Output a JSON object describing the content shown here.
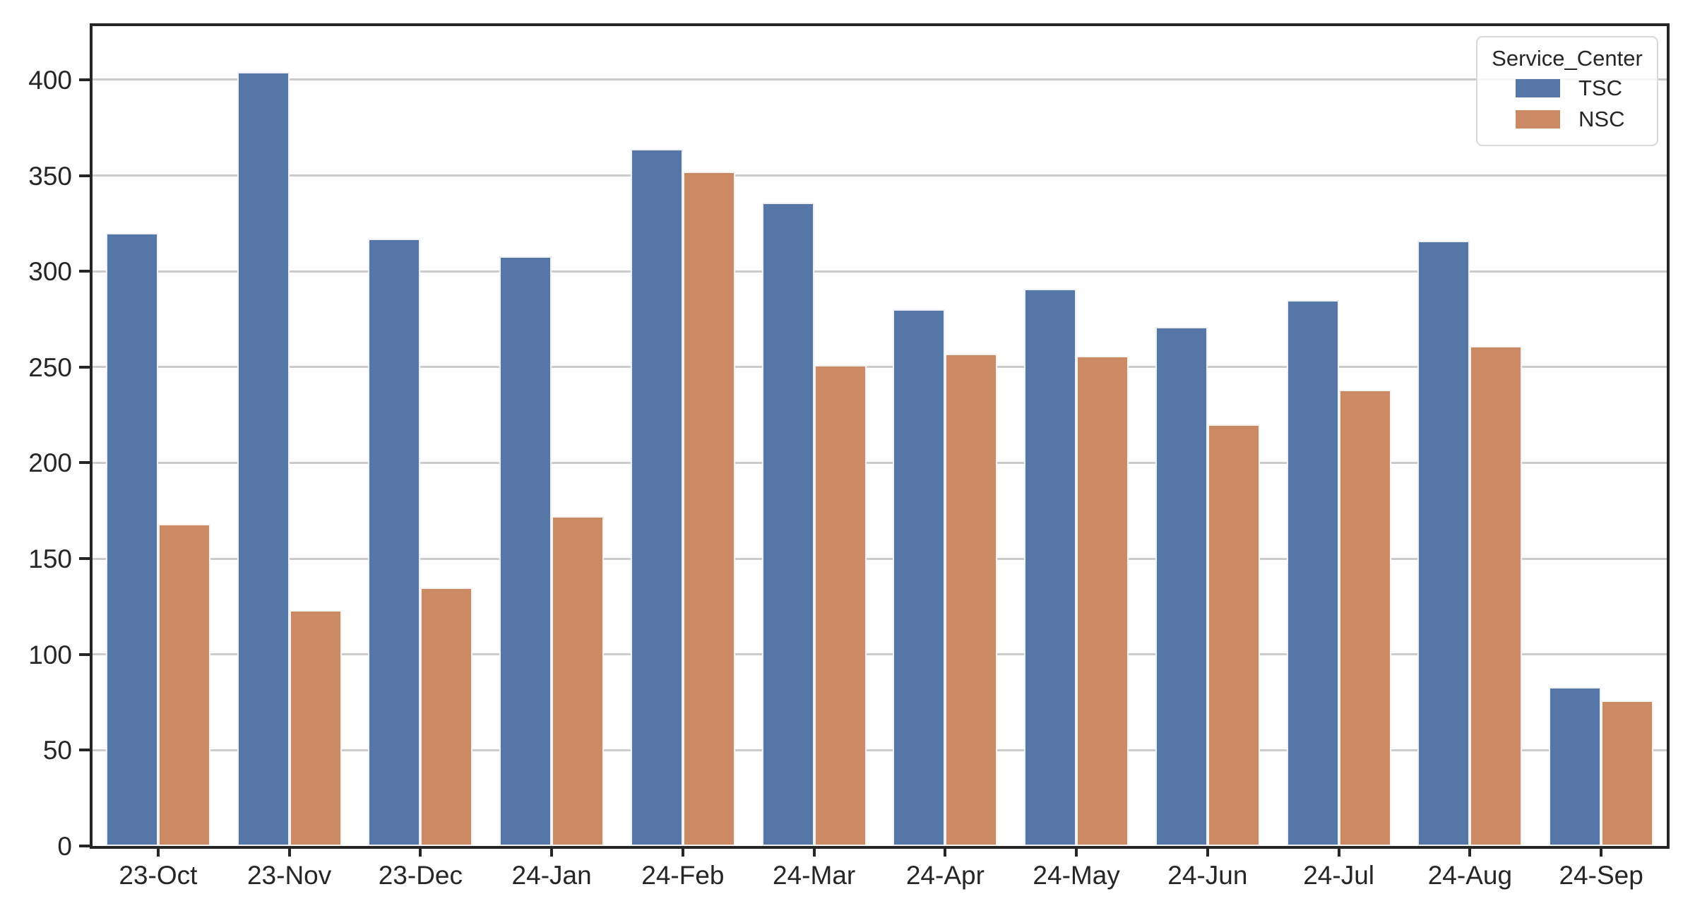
{
  "chart_data": {
    "type": "bar",
    "title": "",
    "xlabel": "",
    "ylabel": "",
    "categories": [
      "23-Oct",
      "23-Nov",
      "23-Dec",
      "24-Jan",
      "24-Feb",
      "24-Mar",
      "24-Apr",
      "24-May",
      "24-Jun",
      "24-Jul",
      "24-Aug",
      "24-Sep"
    ],
    "series": [
      {
        "name": "TSC",
        "color": "#5776A8",
        "values": [
          320,
          404,
          317,
          308,
          364,
          336,
          280,
          291,
          271,
          285,
          316,
          83
        ]
      },
      {
        "name": "NSC",
        "color": "#CB8A64",
        "values": [
          168,
          123,
          135,
          172,
          352,
          251,
          257,
          256,
          220,
          238,
          261,
          76
        ]
      }
    ],
    "yticks": [
      0,
      50,
      100,
      150,
      200,
      250,
      300,
      350,
      400
    ],
    "ylim": [
      0,
      428
    ],
    "grid": "horizontal-only",
    "legend": {
      "title": "Service_Center",
      "position": "upper-right"
    },
    "colors": {
      "grid": "#cccccc",
      "spine": "#262626",
      "text": "#262626",
      "background": "#ffffff",
      "bar_edge": "#ffffff"
    }
  }
}
